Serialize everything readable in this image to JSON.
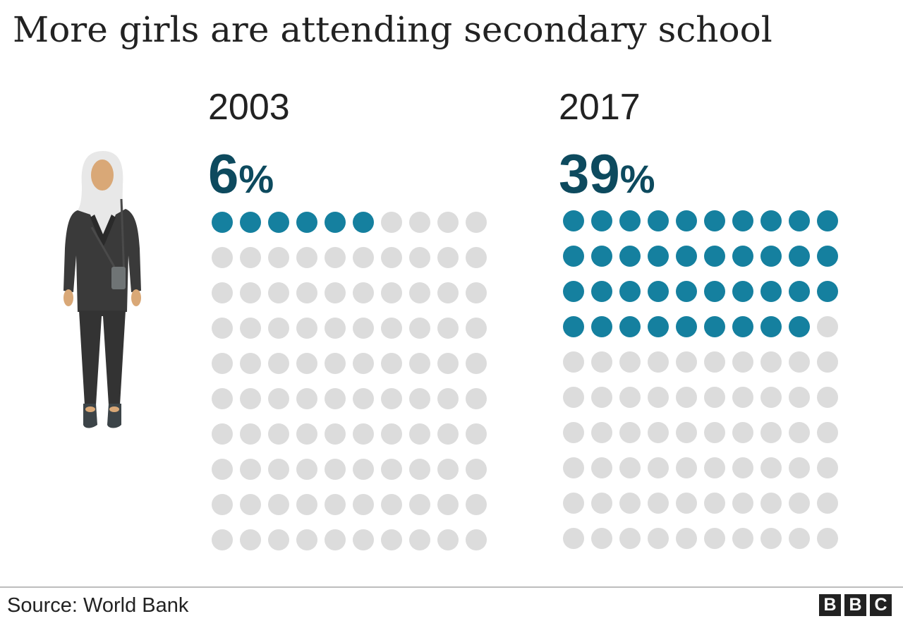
{
  "title": "More girls are attending secondary school",
  "source": "Source: World Bank",
  "logo": [
    "B",
    "B",
    "C"
  ],
  "colors": {
    "filled": "#15809f",
    "empty": "#dcdcdc",
    "percent_text": "#0d4a5e"
  },
  "chart_data": {
    "type": "waffle",
    "title": "More girls are attending secondary school",
    "grid": {
      "rows": 10,
      "cols": 10
    },
    "panels": [
      {
        "year": "2003",
        "value": 6,
        "display": "6",
        "unit": "%"
      },
      {
        "year": "2017",
        "value": 39,
        "display": "39",
        "unit": "%"
      }
    ]
  }
}
